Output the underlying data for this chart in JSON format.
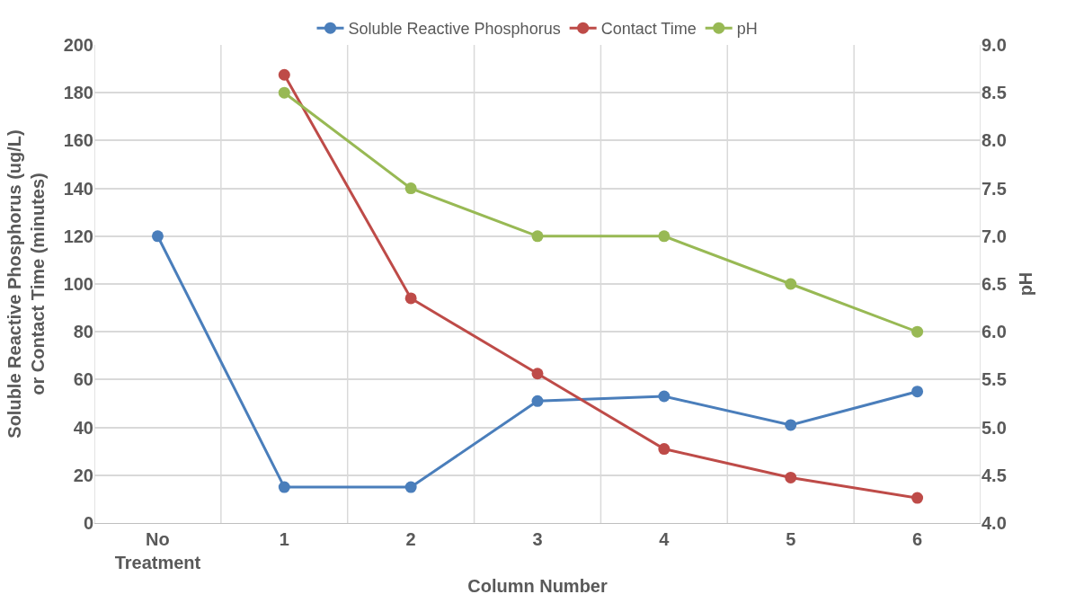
{
  "chart_data": {
    "type": "line",
    "xlabel": "Column Number",
    "ylabel": "Soluble Reactive Phosphorus (ug/L) or Contact Time (minutes)",
    "y2label": "pH",
    "categories": [
      "No Treatment",
      "1",
      "2",
      "3",
      "4",
      "5",
      "6"
    ],
    "series": [
      {
        "name": "Soluble Reactive Phosphorus",
        "color": "#4a7ebb",
        "values": [
          120,
          15,
          15,
          51,
          53,
          41,
          55
        ]
      },
      {
        "name": "Contact Time",
        "color": "#be4b48",
        "values": [
          null,
          187.5,
          94,
          62.5,
          31,
          19,
          10.5
        ]
      },
      {
        "name": "pH",
        "color": "#98b954",
        "axis": "y2",
        "values": [
          null,
          8.5,
          7.5,
          7.0,
          7.0,
          6.5,
          6.0
        ]
      }
    ],
    "ylim": [
      0,
      200
    ],
    "yticks": [
      0,
      20,
      40,
      60,
      80,
      100,
      120,
      140,
      160,
      180,
      200
    ],
    "y2lim": [
      4,
      9
    ],
    "y2ticks": [
      {
        "value": 4,
        "label": "4.0"
      },
      {
        "value": 4.5,
        "label": "4.5"
      },
      {
        "value": 5,
        "label": "5.0"
      },
      {
        "value": 5.5,
        "label": "5.5"
      },
      {
        "value": 6,
        "label": "6.0"
      },
      {
        "value": 6.5,
        "label": "6.5"
      },
      {
        "value": 7,
        "label": "7.0"
      },
      {
        "value": 7.5,
        "label": "7.5"
      },
      {
        "value": 8,
        "label": "8.0"
      },
      {
        "value": 8.5,
        "label": "8.5"
      },
      {
        "value": 9,
        "label": "9.0"
      }
    ],
    "grid": true,
    "legend": "top",
    "marker": "circle",
    "line_style": "solid"
  }
}
